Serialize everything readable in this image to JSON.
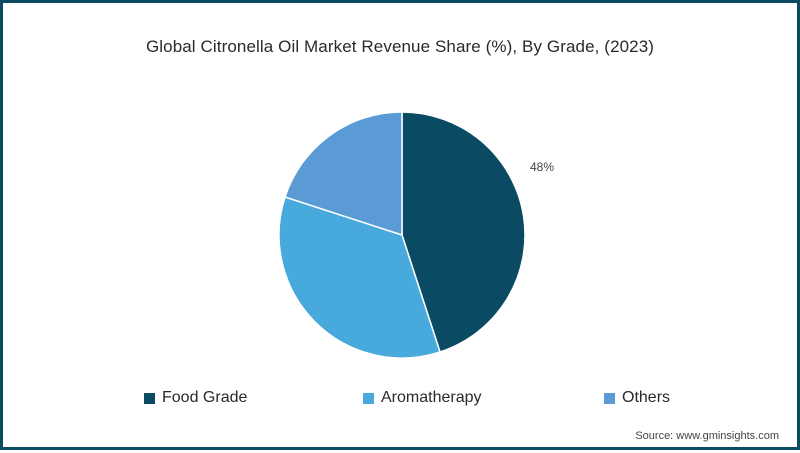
{
  "chart": {
    "title": "Global Citronella Oil Market Revenue Share (%), By Grade, (2023)",
    "slice_label": "48%",
    "legend": [
      {
        "label": "Food Grade",
        "color": "#0b4a63"
      },
      {
        "label": "Aromatherapy",
        "color": "#47a9dc"
      },
      {
        "label": "Others",
        "color": "#5b9bd5"
      }
    ],
    "source": "Source: www.gminsights.com"
  },
  "colors": {
    "frame": "#0b4a63",
    "food_grade": "#0b4a63",
    "aromatherapy": "#47a9dc",
    "others": "#5b9bd5"
  },
  "chart_data": {
    "type": "pie",
    "title": "Global Citronella Oil Market Revenue Share (%), By Grade, (2023)",
    "categories": [
      "Food Grade",
      "Aromatherapy",
      "Others"
    ],
    "values": [
      48,
      33,
      19
    ],
    "data_labels": {
      "Food Grade": "48%"
    },
    "visual_estimate_percent": {
      "Food Grade": 45,
      "Aromatherapy": 35,
      "Others": 20
    },
    "start_angle_deg": 0,
    "direction": "clockwise",
    "legend_position": "bottom",
    "source": "Source: www.gminsights.com"
  }
}
